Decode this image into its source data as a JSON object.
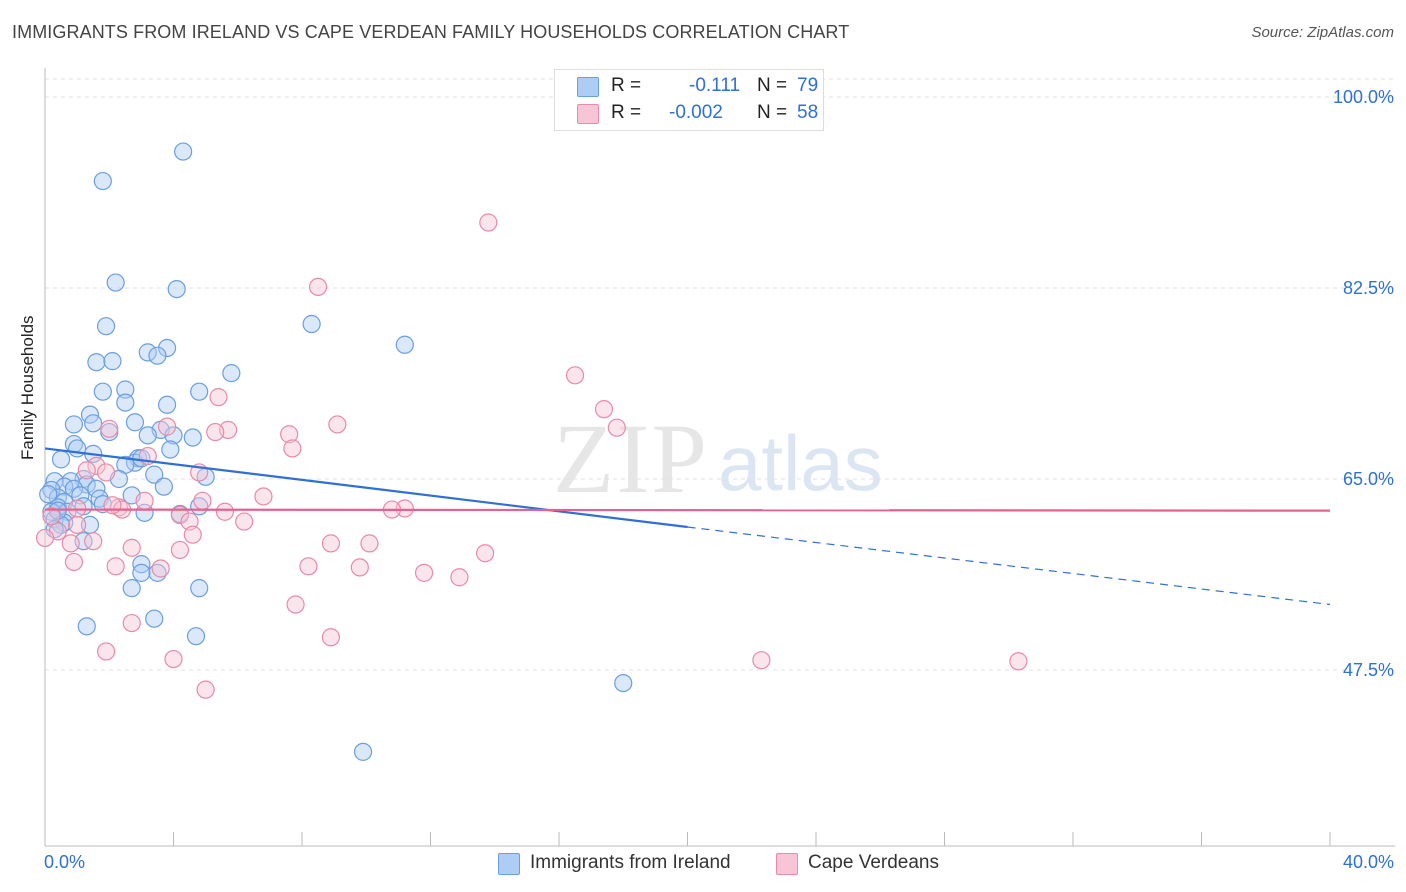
{
  "title": "IMMIGRANTS FROM IRELAND VS CAPE VERDEAN FAMILY HOUSEHOLDS CORRELATION CHART",
  "source": "Source: ZipAtlas.com",
  "watermark": {
    "zip": "ZIP",
    "atlas": "atlas"
  },
  "colors": {
    "blue": "#6a9fe0",
    "blue_fill": "#aecdf4",
    "blue_line": "#2f6fd6",
    "pink": "#e88aa8",
    "pink_fill": "#f7c5d5",
    "pink_line": "#e8608c"
  },
  "stats": [
    {
      "r_label": "R =",
      "r_value": "-0.111",
      "n_label": "N =",
      "n_value": "79"
    },
    {
      "r_label": "R =",
      "r_value": "-0.002",
      "n_label": "N =",
      "n_value": "58"
    }
  ],
  "legend": [
    "Immigrants from Ireland",
    "Cape Verdeans"
  ],
  "x_tick_labels": {
    "left": "0.0%",
    "right": "40.0%"
  },
  "y_tick_labels": [
    "100.0%",
    "82.5%",
    "65.0%",
    "47.5%"
  ],
  "chart_data": {
    "type": "scatter",
    "title": "IMMIGRANTS FROM IRELAND VS CAPE VERDEAN FAMILY HOUSEHOLDS CORRELATION CHART",
    "xlabel": "",
    "ylabel": "Family Households",
    "xlim": [
      0,
      40
    ],
    "ylim": [
      30,
      102
    ],
    "y_ticks": [
      100.0,
      82.5,
      65.0,
      47.5
    ],
    "grid": true,
    "legend_position": "bottom",
    "series": [
      {
        "name": "Immigrants from Ireland",
        "color": "blue",
        "trend": {
          "x": [
            0,
            20
          ],
          "y": [
            67.8,
            60.6
          ],
          "dashed_to": [
            40,
            53.5
          ]
        },
        "points": [
          [
            4.3,
            95.0
          ],
          [
            1.8,
            92.3
          ],
          [
            2.2,
            83.0
          ],
          [
            4.1,
            82.4
          ],
          [
            8.3,
            79.2
          ],
          [
            11.2,
            77.3
          ],
          [
            1.9,
            79.0
          ],
          [
            1.6,
            75.7
          ],
          [
            2.1,
            75.8
          ],
          [
            3.2,
            76.6
          ],
          [
            3.8,
            77.0
          ],
          [
            3.5,
            76.3
          ],
          [
            5.8,
            74.7
          ],
          [
            2.5,
            73.2
          ],
          [
            1.8,
            73.0
          ],
          [
            4.8,
            73.0
          ],
          [
            2.5,
            72.0
          ],
          [
            3.8,
            71.8
          ],
          [
            1.4,
            70.9
          ],
          [
            0.9,
            70.0
          ],
          [
            1.5,
            70.1
          ],
          [
            2.8,
            70.2
          ],
          [
            2.0,
            69.3
          ],
          [
            3.6,
            69.5
          ],
          [
            3.2,
            69.0
          ],
          [
            4.0,
            69.0
          ],
          [
            4.6,
            68.8
          ],
          [
            0.9,
            68.2
          ],
          [
            1.0,
            67.8
          ],
          [
            3.9,
            67.7
          ],
          [
            1.5,
            67.3
          ],
          [
            0.5,
            66.8
          ],
          [
            2.9,
            66.9
          ],
          [
            2.8,
            66.5
          ],
          [
            3.0,
            66.9
          ],
          [
            2.5,
            66.3
          ],
          [
            3.4,
            65.4
          ],
          [
            5.0,
            65.2
          ],
          [
            2.3,
            65.0
          ],
          [
            1.2,
            65.0
          ],
          [
            0.8,
            64.8
          ],
          [
            0.3,
            64.8
          ],
          [
            1.3,
            64.5
          ],
          [
            0.6,
            64.3
          ],
          [
            0.9,
            64.1
          ],
          [
            3.7,
            64.3
          ],
          [
            0.2,
            64.0
          ],
          [
            1.6,
            64.1
          ],
          [
            1.1,
            63.5
          ],
          [
            0.4,
            63.3
          ],
          [
            2.7,
            63.5
          ],
          [
            1.7,
            63.2
          ],
          [
            0.6,
            62.9
          ],
          [
            1.8,
            62.7
          ],
          [
            4.8,
            62.5
          ],
          [
            0.4,
            62.4
          ],
          [
            0.7,
            62.0
          ],
          [
            0.2,
            62.0
          ],
          [
            1.2,
            62.5
          ],
          [
            3.1,
            61.9
          ],
          [
            4.2,
            61.8
          ],
          [
            0.3,
            61.3
          ],
          [
            0.6,
            61.0
          ],
          [
            0.5,
            60.8
          ],
          [
            1.4,
            60.8
          ],
          [
            0.3,
            60.4
          ],
          [
            1.2,
            59.3
          ],
          [
            3.0,
            57.2
          ],
          [
            3.5,
            56.4
          ],
          [
            3.0,
            56.4
          ],
          [
            4.8,
            55.0
          ],
          [
            2.7,
            55.0
          ],
          [
            3.4,
            52.2
          ],
          [
            1.3,
            51.5
          ],
          [
            4.7,
            50.6
          ],
          [
            18.0,
            46.3
          ],
          [
            9.9,
            40.0
          ],
          [
            0.1,
            63.6
          ],
          [
            0.4,
            62.1
          ]
        ]
      },
      {
        "name": "Cape Verdeans",
        "color": "pink",
        "trend": {
          "x": [
            0,
            40
          ],
          "y": [
            62.2,
            62.1
          ]
        },
        "points": [
          [
            13.8,
            88.5
          ],
          [
            8.5,
            82.6
          ],
          [
            16.5,
            74.5
          ],
          [
            17.4,
            71.4
          ],
          [
            5.4,
            72.5
          ],
          [
            9.1,
            70.0
          ],
          [
            5.7,
            69.5
          ],
          [
            17.8,
            69.7
          ],
          [
            2.0,
            69.6
          ],
          [
            3.8,
            69.8
          ],
          [
            5.3,
            69.3
          ],
          [
            7.6,
            69.1
          ],
          [
            7.7,
            67.8
          ],
          [
            3.2,
            67.1
          ],
          [
            1.6,
            66.2
          ],
          [
            1.9,
            65.6
          ],
          [
            1.3,
            65.8
          ],
          [
            4.8,
            65.6
          ],
          [
            6.8,
            63.4
          ],
          [
            3.1,
            63.0
          ],
          [
            4.9,
            63.0
          ],
          [
            2.3,
            62.4
          ],
          [
            2.4,
            62.2
          ],
          [
            4.2,
            61.7
          ],
          [
            11.2,
            62.3
          ],
          [
            10.8,
            62.2
          ],
          [
            6.2,
            61.1
          ],
          [
            4.5,
            61.1
          ],
          [
            1.0,
            60.8
          ],
          [
            4.6,
            59.9
          ],
          [
            0.4,
            60.2
          ],
          [
            0.0,
            59.6
          ],
          [
            0.8,
            59.1
          ],
          [
            1.5,
            59.3
          ],
          [
            2.7,
            58.7
          ],
          [
            8.9,
            59.1
          ],
          [
            10.1,
            59.1
          ],
          [
            4.2,
            58.5
          ],
          [
            13.7,
            58.2
          ],
          [
            0.9,
            57.4
          ],
          [
            2.2,
            57.0
          ],
          [
            3.6,
            56.8
          ],
          [
            8.2,
            57.0
          ],
          [
            9.8,
            56.9
          ],
          [
            11.8,
            56.4
          ],
          [
            12.9,
            56.0
          ],
          [
            7.8,
            53.5
          ],
          [
            2.7,
            51.8
          ],
          [
            8.9,
            50.5
          ],
          [
            1.9,
            49.2
          ],
          [
            4.0,
            48.5
          ],
          [
            22.3,
            48.4
          ],
          [
            30.3,
            48.3
          ],
          [
            5.0,
            45.7
          ],
          [
            1.0,
            62.3
          ],
          [
            0.2,
            61.6
          ],
          [
            2.1,
            62.6
          ],
          [
            5.6,
            62.0
          ]
        ]
      }
    ]
  }
}
